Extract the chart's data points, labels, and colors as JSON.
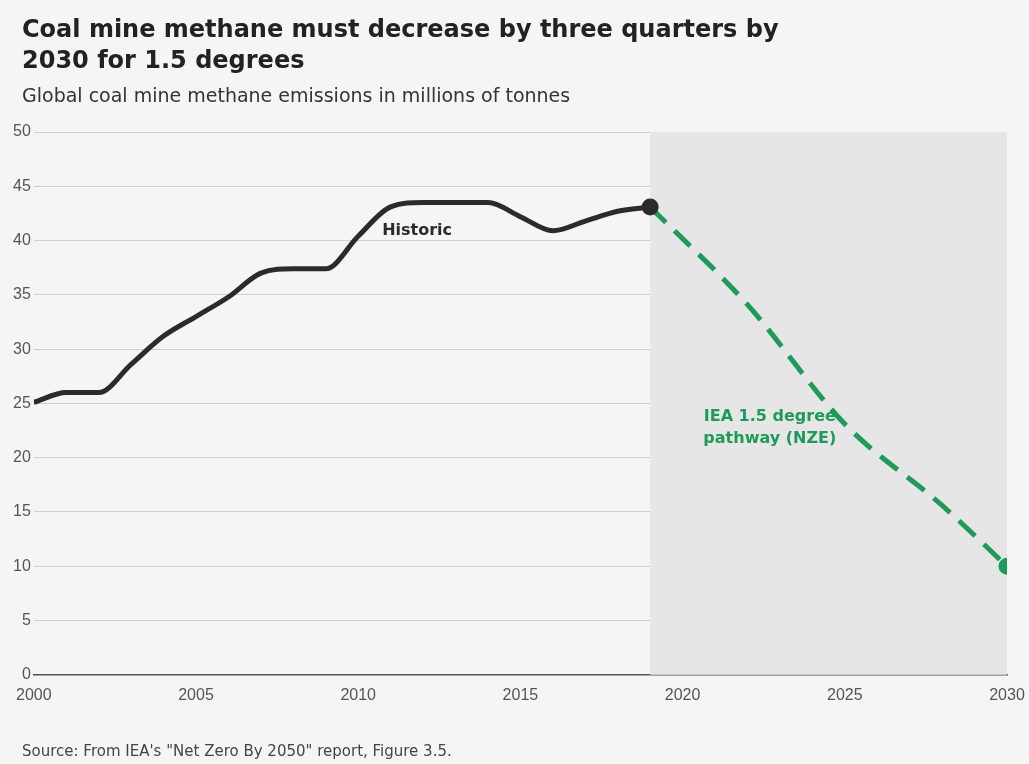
{
  "chart_data": {
    "type": "line",
    "title": "Coal mine methane must decrease by three quarters by 2030 for 1.5 degrees",
    "subtitle": "Global coal mine methane emissions in millions of tonnes",
    "annotations": [
      "Source: From IEA's \"Net Zero By 2050\" report, Figure 3.5."
    ],
    "series": [
      {
        "name": "Historic",
        "color": "#2b2b2b",
        "line_style": "solid",
        "x": [
          2000,
          2001,
          2002,
          2003,
          2004,
          2005,
          2006,
          2007,
          2008,
          2009,
          2010,
          2011,
          2012,
          2013,
          2014,
          2015,
          2016,
          2017,
          2018,
          2019
        ],
        "values": [
          25.1,
          26,
          26,
          28.6,
          31.2,
          33,
          34.8,
          37,
          37.4,
          37.4,
          40.4,
          43.1,
          43.5,
          43.5,
          43.5,
          42.2,
          40.9,
          41.8,
          42.7,
          43.1
        ]
      },
      {
        "name": "IEA 1.5 degree pathway (NZE)",
        "color": "#1e9a5a",
        "line_style": "dashed",
        "x": [
          2019,
          2022,
          2025,
          2028,
          2030
        ],
        "values": [
          43.1,
          34.1,
          23.1,
          15.6,
          10
        ]
      }
    ],
    "bands": [
      {
        "axis": "x",
        "from": 2019,
        "to": 2030,
        "color": "#e6e6e6"
      }
    ],
    "xlim": [
      2000,
      2030
    ],
    "xticks": [
      2000,
      2005,
      2010,
      2015,
      2020,
      2025,
      2030
    ],
    "ylim": [
      0,
      50
    ],
    "yticks": [
      0,
      5,
      10,
      15,
      20,
      25,
      30,
      35,
      40,
      45,
      50
    ],
    "grid": "y",
    "legend": false
  }
}
